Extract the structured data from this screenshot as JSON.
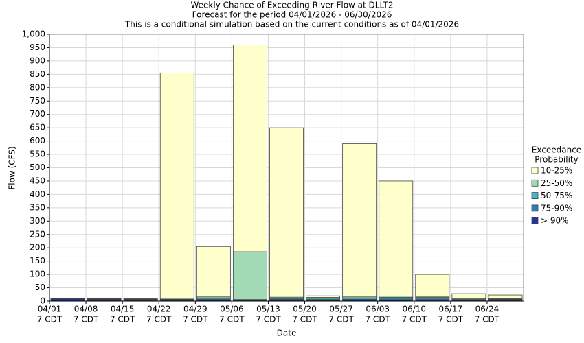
{
  "chart_data": {
    "type": "stacked_bar",
    "title": "Weekly Chance of Exceeding River Flow at DLLT2",
    "subtitle": "Forecast for the period 04/01/2026 - 06/30/2026",
    "note": "This is a conditional simulation based on the current conditions as of 04/01/2026",
    "x_label": "Date",
    "y_label": "Flow (CFS)",
    "legend_title": [
      "Exceedance",
      "Probability"
    ],
    "categories": [
      [
        "04/01",
        "7 CDT"
      ],
      [
        "04/08",
        "7 CDT"
      ],
      [
        "04/15",
        "7 CDT"
      ],
      [
        "04/22",
        "7 CDT"
      ],
      [
        "04/29",
        "7 CDT"
      ],
      [
        "05/06",
        "7 CDT"
      ],
      [
        "05/13",
        "7 CDT"
      ],
      [
        "05/20",
        "7 CDT"
      ],
      [
        "05/27",
        "7 CDT"
      ],
      [
        "06/03",
        "7 CDT"
      ],
      [
        "06/10",
        "7 CDT"
      ],
      [
        "06/17",
        "7 CDT"
      ],
      [
        "06/24",
        "7 CDT"
      ]
    ],
    "series": [
      {
        "name": "> 90%",
        "color": "#253494",
        "values": [
          9,
          4,
          3,
          3,
          4,
          3,
          4,
          3,
          4,
          4,
          4,
          3,
          3
        ]
      },
      {
        "name": "75-90%",
        "color": "#2c7fb8",
        "values": [
          0.5,
          2,
          1,
          2,
          3,
          2,
          3,
          3,
          3,
          4,
          4,
          2,
          2
        ]
      },
      {
        "name": "50-75%",
        "color": "#41b6c4",
        "values": [
          0.5,
          2,
          1,
          2,
          4,
          1,
          3,
          5,
          5,
          6,
          5,
          3,
          2
        ]
      },
      {
        "name": "25-50%",
        "color": "#a1dab4",
        "values": [
          0.5,
          1,
          2,
          4,
          5,
          179,
          5,
          3,
          4,
          5,
          3,
          3,
          2
        ]
      },
      {
        "name": "10-25%",
        "color": "#ffffcc",
        "values": [
          0.5,
          1,
          2,
          844,
          189,
          775,
          635,
          6,
          574,
          431,
          84,
          17,
          14
        ]
      }
    ],
    "ylim": [
      0,
      1000
    ],
    "yticks": [
      0,
      50,
      100,
      150,
      200,
      250,
      300,
      350,
      400,
      450,
      500,
      550,
      600,
      650,
      700,
      750,
      800,
      850,
      900,
      950,
      {
        "value": 1000,
        "label": "1,000"
      }
    ],
    "grid": true,
    "legend": "right"
  }
}
